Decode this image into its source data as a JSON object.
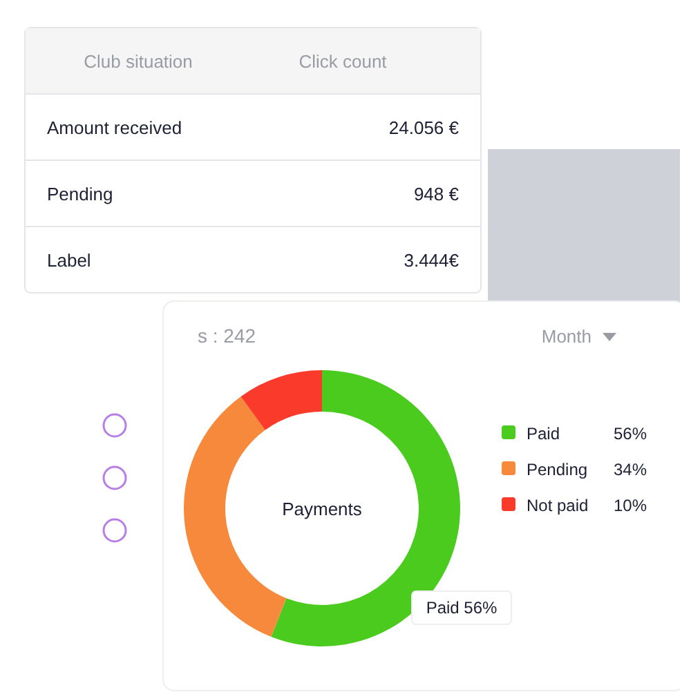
{
  "chart_data": [
    {
      "type": "other",
      "annotations": [
        "Club situation",
        "Click count",
        "Amount received",
        "24.056 €",
        "Pending",
        "948 €",
        "Label",
        "3.444€"
      ]
    },
    {
      "type": "donut",
      "title": "Payments",
      "categories": [
        "Paid",
        "Pending",
        "Not paid"
      ],
      "values": [
        56,
        34,
        10
      ],
      "colors": [
        "#4ccb1f",
        "#f7893d",
        "#fa3a2a"
      ],
      "value_labels": [
        "56%",
        "34%",
        "10%"
      ],
      "legend": "right",
      "annotations": [
        "Month",
        "s : 242",
        "Paid 56%"
      ]
    }
  ]
}
